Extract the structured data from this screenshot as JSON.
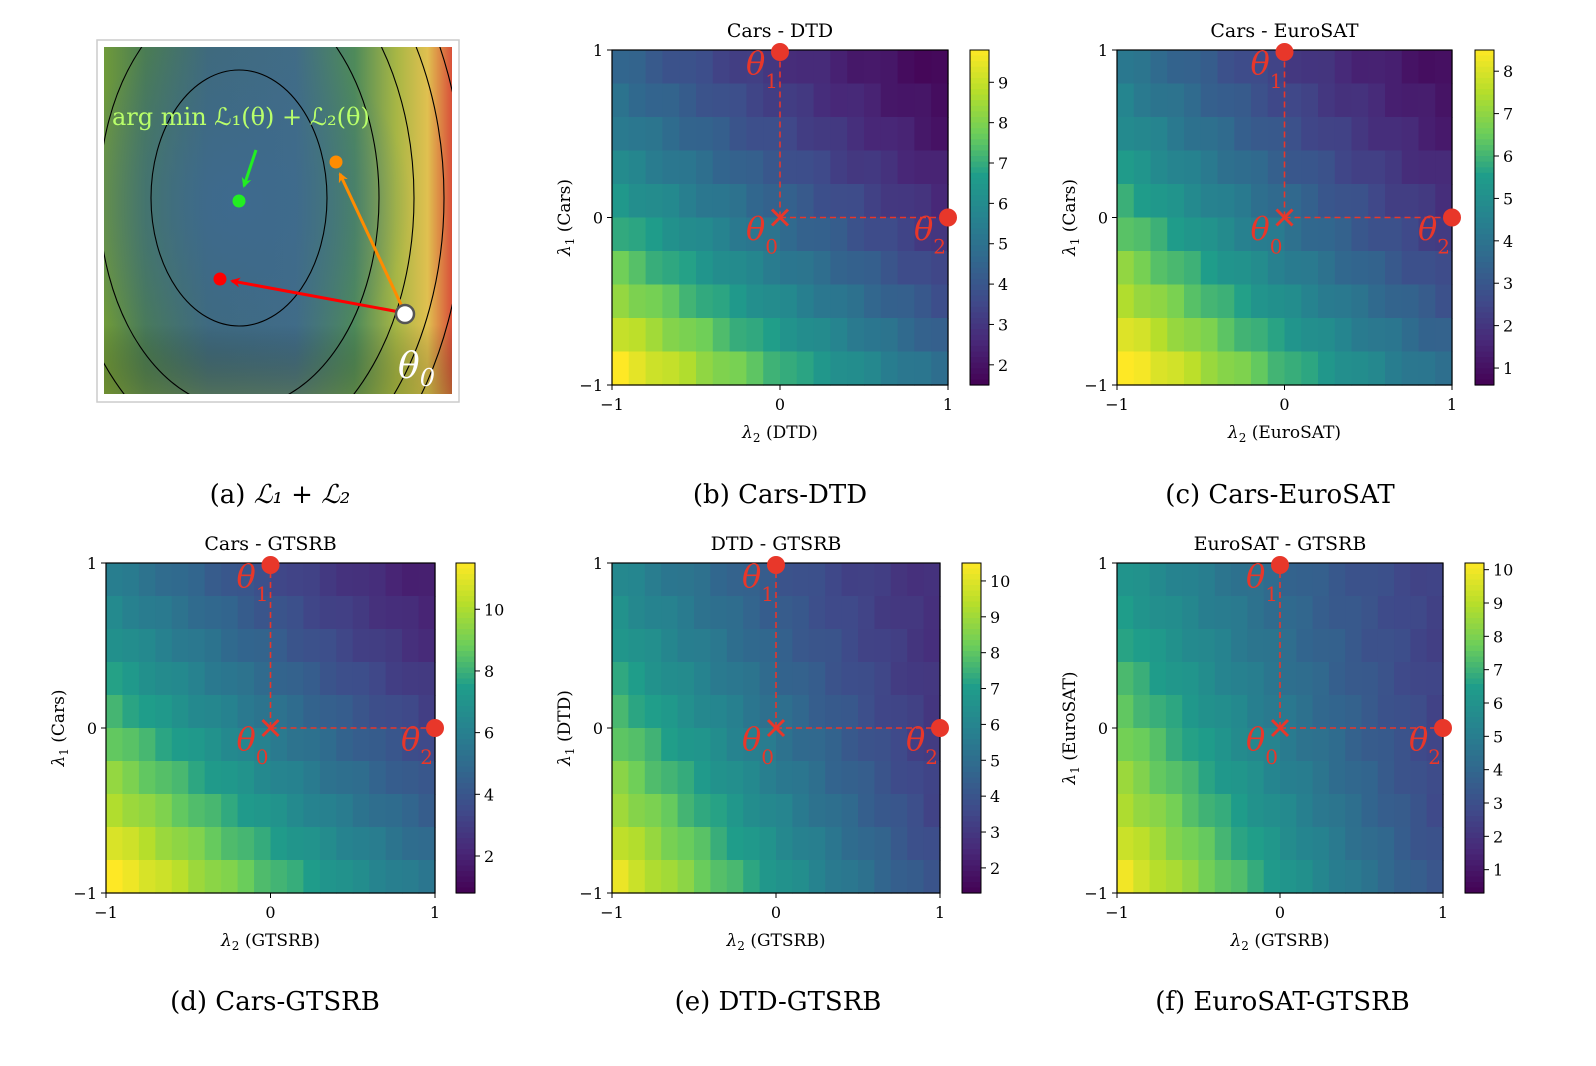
{
  "captions": {
    "a_prefix": "(a)",
    "a_math": "ℒ₁ + ℒ₂",
    "b": "(b) Cars-DTD",
    "c": "(c) Cars-EuroSAT",
    "d": "(d) Cars-GTSRB",
    "e": "(e) DTD-GTSRB",
    "f": "(f) EuroSAT-GTSRB"
  },
  "illustration": {
    "annotation": "arg min ℒ₁(θ) + ℒ₂(θ)",
    "theta_label": "θ",
    "theta_sub": "0",
    "colors": {
      "minimum": "#22ee22",
      "merged_point": "#ff0000",
      "task_point": "#ff8c00",
      "annotation": "#b9ff6a"
    }
  },
  "chart_data": [
    {
      "type": "heatmap",
      "id": "b",
      "title": "Cars - DTD",
      "xlabel_sym": "λ",
      "xlabel_sub": "2",
      "xlabel_name": "(DTD)",
      "ylabel_sym": "λ",
      "ylabel_sub": "1",
      "ylabel_name": "(Cars)",
      "xlim": [
        -1,
        1
      ],
      "ylim": [
        -1,
        1
      ],
      "xticks": [
        "−1",
        "0",
        "1"
      ],
      "yticks": [
        "−1",
        "0",
        "1"
      ],
      "colorbar": {
        "min": 1.5,
        "max": 9.8,
        "ticks": [
          "2",
          "3",
          "4",
          "5",
          "6",
          "7",
          "8",
          "9"
        ],
        "tick_values": [
          2,
          3,
          4,
          5,
          6,
          7,
          8,
          9
        ]
      },
      "grid_cols": 20,
      "grid_rows": 10,
      "surface": {
        "a": 4.6,
        "bx": -2.3,
        "by": -2.6,
        "cxy": 0.6,
        "cxx": 0.2,
        "cyy": 0.5
      },
      "markers": {
        "theta0": "θ",
        "theta0_sub": "0",
        "theta1": "θ",
        "theta1_sub": "1",
        "theta2": "θ",
        "theta2_sub": "2"
      }
    },
    {
      "type": "heatmap",
      "id": "c",
      "title": "Cars - EuroSAT",
      "xlabel_sym": "λ",
      "xlabel_sub": "2",
      "xlabel_name": "(EuroSAT)",
      "ylabel_sym": "λ",
      "ylabel_sub": "1",
      "ylabel_name": "(Cars)",
      "xlim": [
        -1,
        1
      ],
      "ylim": [
        -1,
        1
      ],
      "xticks": [
        "−1",
        "0",
        "1"
      ],
      "yticks": [
        "−1",
        "0",
        "1"
      ],
      "colorbar": {
        "min": 0.6,
        "max": 8.5,
        "ticks": [
          "1",
          "2",
          "3",
          "4",
          "5",
          "6",
          "7",
          "8"
        ],
        "tick_values": [
          1,
          2,
          3,
          4,
          5,
          6,
          7,
          8
        ]
      },
      "grid_cols": 20,
      "grid_rows": 10,
      "surface": {
        "a": 3.8,
        "bx": -2.4,
        "by": -2.3,
        "cxy": 0.5,
        "cxx": 0.3,
        "cyy": 0.4
      },
      "markers": {
        "theta0": "θ",
        "theta0_sub": "0",
        "theta1": "θ",
        "theta1_sub": "1",
        "theta2": "θ",
        "theta2_sub": "2"
      }
    },
    {
      "type": "heatmap",
      "id": "d",
      "title": "Cars - GTSRB",
      "xlabel_sym": "λ",
      "xlabel_sub": "2",
      "xlabel_name": "(GTSRB)",
      "ylabel_sym": "λ",
      "ylabel_sub": "1",
      "ylabel_name": "(Cars)",
      "xlim": [
        -1,
        1
      ],
      "ylim": [
        -1,
        1
      ],
      "xticks": [
        "−1",
        "0",
        "1"
      ],
      "yticks": [
        "−1",
        "0",
        "1"
      ],
      "colorbar": {
        "min": 0.8,
        "max": 11.5,
        "ticks": [
          "2",
          "4",
          "6",
          "8",
          "10"
        ],
        "tick_values": [
          2,
          4,
          6,
          8,
          10
        ]
      },
      "grid_cols": 20,
      "grid_rows": 10,
      "surface": {
        "a": 5.6,
        "bx": -3.0,
        "by": -2.9,
        "cxy": 0.6,
        "cxx": 0.3,
        "cyy": 0.4
      },
      "markers": {
        "theta0": "θ",
        "theta0_sub": "0",
        "theta1": "θ",
        "theta1_sub": "1",
        "theta2": "θ",
        "theta2_sub": "2"
      }
    },
    {
      "type": "heatmap",
      "id": "e",
      "title": "DTD - GTSRB",
      "xlabel_sym": "λ",
      "xlabel_sub": "2",
      "xlabel_name": "(GTSRB)",
      "ylabel_sym": "λ",
      "ylabel_sub": "1",
      "ylabel_name": "(DTD)",
      "xlim": [
        -1,
        1
      ],
      "ylim": [
        -1,
        1
      ],
      "xticks": [
        "−1",
        "0",
        "1"
      ],
      "yticks": [
        "−1",
        "0",
        "1"
      ],
      "colorbar": {
        "min": 1.3,
        "max": 10.5,
        "ticks": [
          "2",
          "3",
          "4",
          "5",
          "6",
          "7",
          "8",
          "9",
          "10"
        ],
        "tick_values": [
          2,
          3,
          4,
          5,
          6,
          7,
          8,
          9,
          10
        ]
      },
      "grid_cols": 20,
      "grid_rows": 10,
      "surface": {
        "a": 5.2,
        "bx": -2.8,
        "by": -1.6,
        "cxy": 0.8,
        "cxx": 0.3,
        "cyy": 0.3
      },
      "markers": {
        "theta0": "θ",
        "theta0_sub": "0",
        "theta1": "θ",
        "theta1_sub": "1",
        "theta2": "θ",
        "theta2_sub": "2"
      }
    },
    {
      "type": "heatmap",
      "id": "f",
      "title": "EuroSAT - GTSRB",
      "xlabel_sym": "λ",
      "xlabel_sub": "2",
      "xlabel_name": "(GTSRB)",
      "ylabel_sym": "λ",
      "ylabel_sub": "1",
      "ylabel_name": "(EuroSAT)",
      "xlim": [
        -1,
        1
      ],
      "ylim": [
        -1,
        1
      ],
      "xticks": [
        "−1",
        "0",
        "1"
      ],
      "yticks": [
        "−1",
        "0",
        "1"
      ],
      "colorbar": {
        "min": 0.3,
        "max": 10.2,
        "ticks": [
          "1",
          "2",
          "3",
          "4",
          "5",
          "6",
          "7",
          "8",
          "9",
          "10"
        ],
        "tick_values": [
          1,
          2,
          3,
          4,
          5,
          6,
          7,
          8,
          9,
          10
        ]
      },
      "grid_cols": 20,
      "grid_rows": 10,
      "surface": {
        "a": 4.9,
        "bx": -3.0,
        "by": -1.4,
        "cxy": 0.9,
        "cxx": 0.3,
        "cyy": 0.3
      },
      "markers": {
        "theta0": "θ",
        "theta0_sub": "0",
        "theta1": "θ",
        "theta1_sub": "1",
        "theta2": "θ",
        "theta2_sub": "2"
      }
    }
  ]
}
